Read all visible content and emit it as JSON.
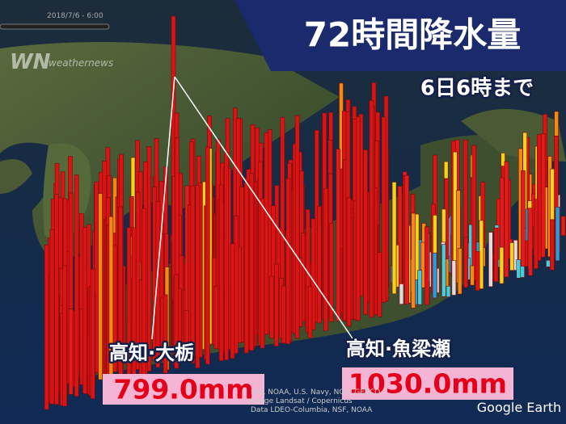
{
  "header": {
    "title": "72時間降水量",
    "subtitle": "6日6時まで"
  },
  "timeline": {
    "timestamp": "2018/7/6 - 6:00"
  },
  "logo": {
    "text": "weathernews"
  },
  "labels": [
    {
      "place": "高知·大栃",
      "amount": "799.0mm"
    },
    {
      "place": "高知·魚梁瀬",
      "amount": "1030.0mm"
    }
  ],
  "attribution": {
    "lines": [
      "SIO, NOAA, U.S. Navy, NGA, GEBCO",
      "Image Landsat / Copernicus",
      "Data LDEO-Columbia, NSF, NOAA"
    ],
    "brand": "Google Earth"
  }
}
